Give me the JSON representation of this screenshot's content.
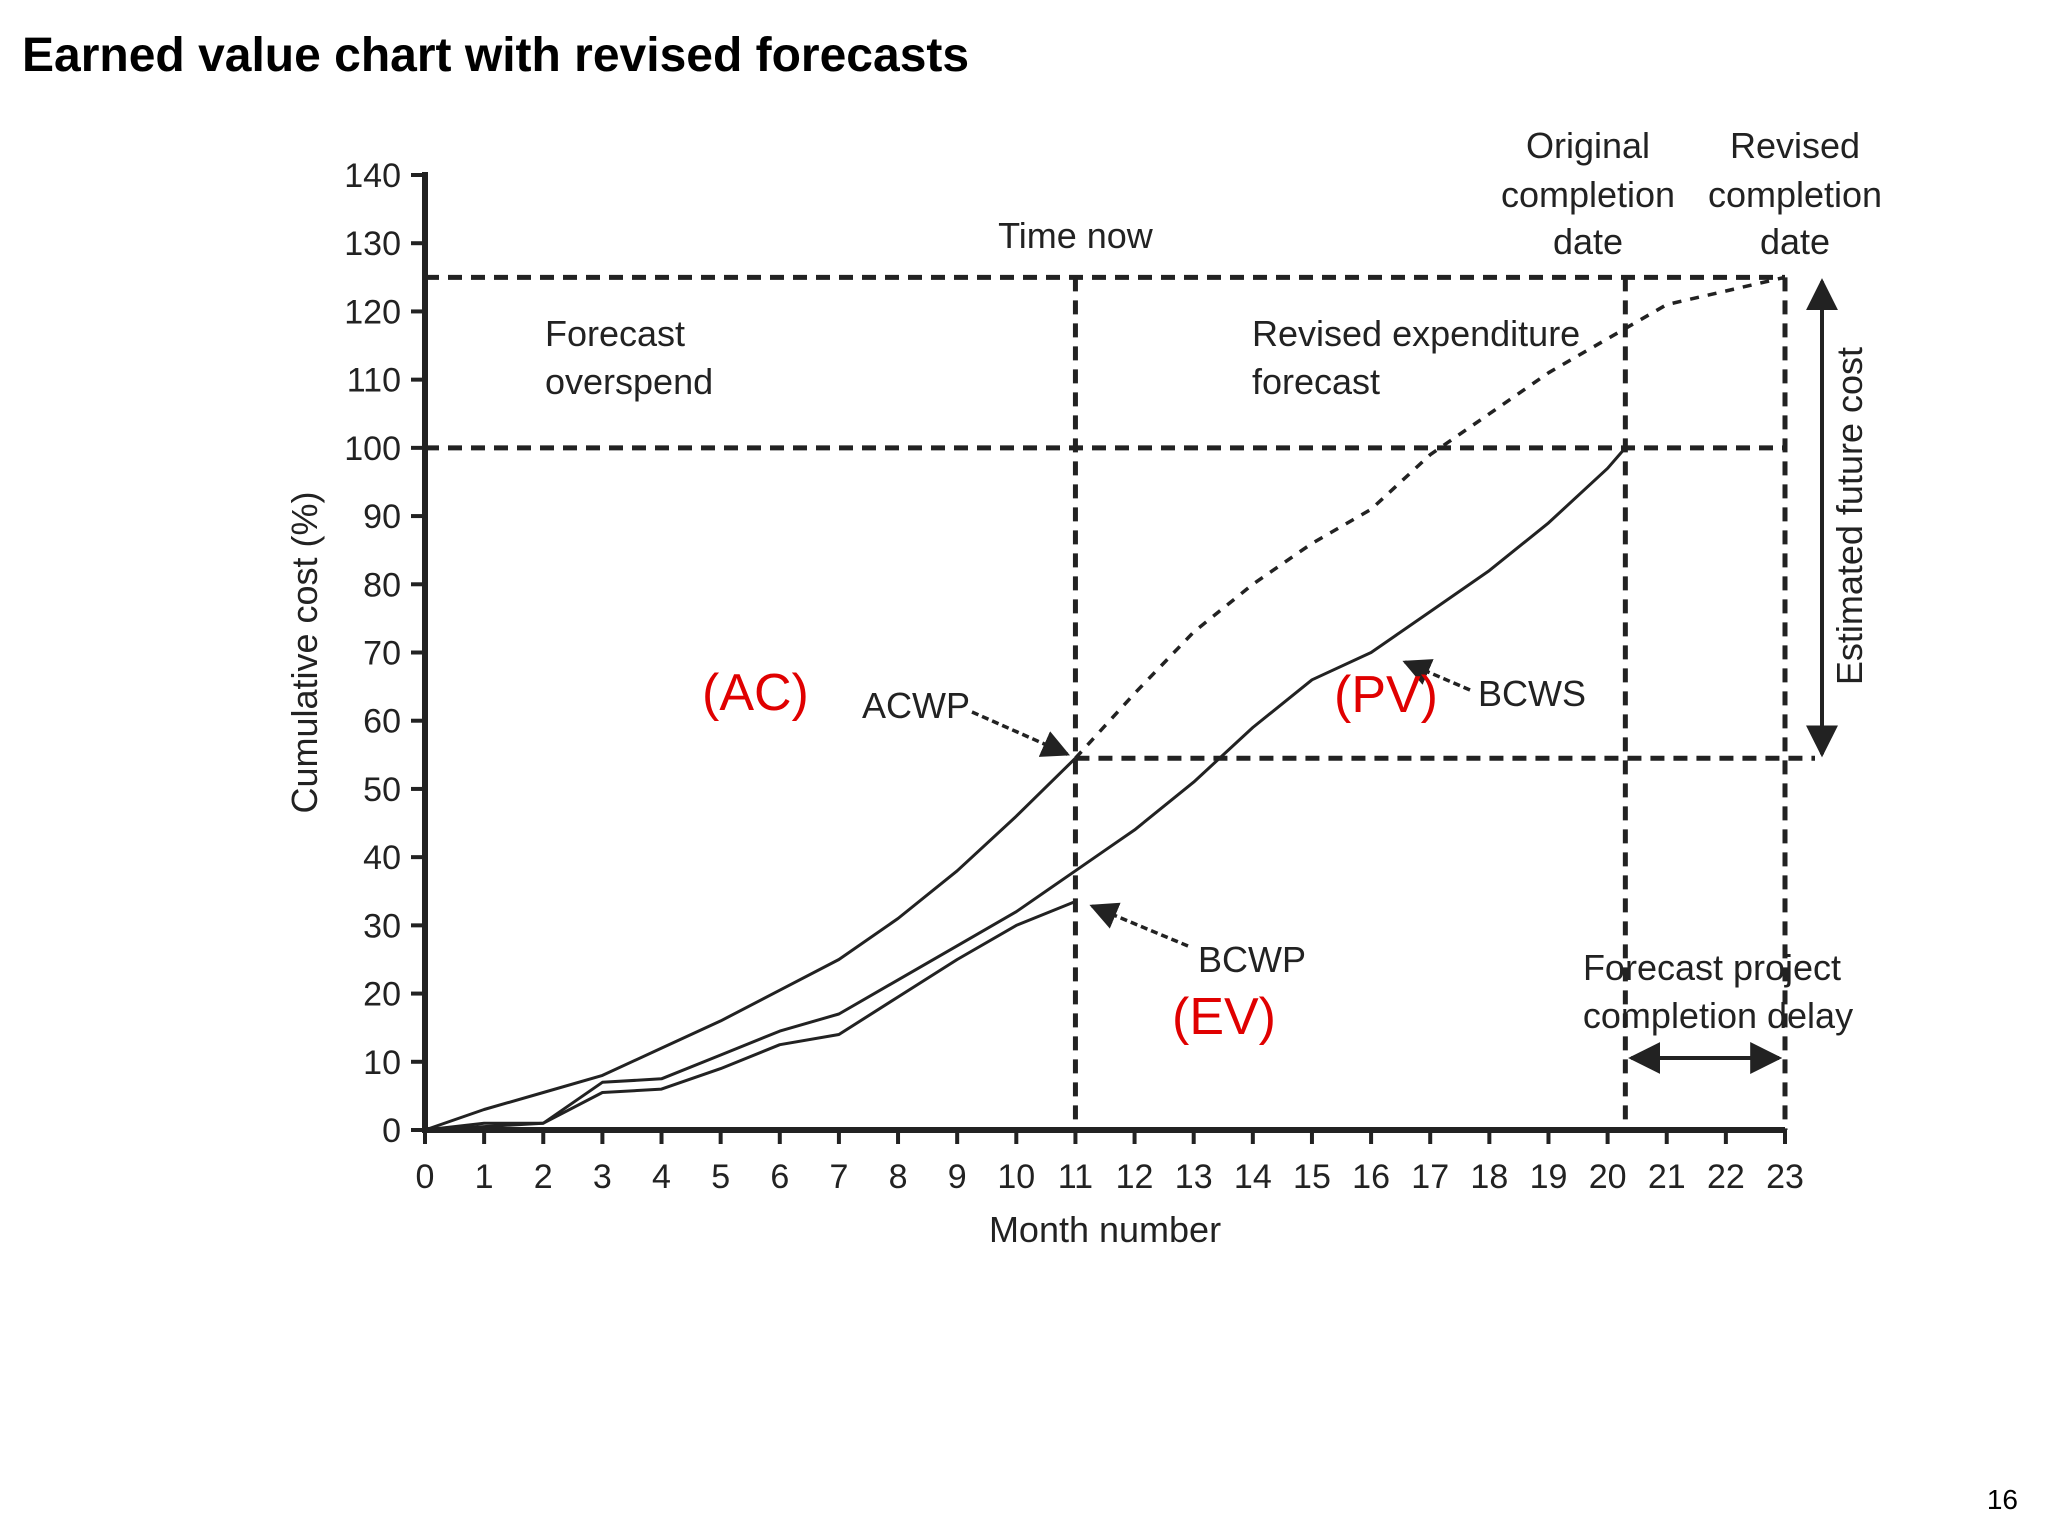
{
  "slide": {
    "title": "Earned value chart with revised forecasts",
    "page_number": "16"
  },
  "chart_data": {
    "type": "line",
    "title": "",
    "xlabel": "Month number",
    "ylabel": "Cumulative cost (%)",
    "xlim": [
      0,
      23
    ],
    "ylim": [
      0,
      140
    ],
    "x_ticks": [
      0,
      1,
      2,
      3,
      4,
      5,
      6,
      7,
      8,
      9,
      10,
      11,
      12,
      13,
      14,
      15,
      16,
      17,
      18,
      19,
      20,
      21,
      22,
      23
    ],
    "y_ticks": [
      0,
      10,
      20,
      30,
      40,
      50,
      60,
      70,
      80,
      90,
      100,
      110,
      120,
      130,
      140
    ],
    "grid": false,
    "series": [
      {
        "name": "ACWP",
        "color": "#222222",
        "style": "solid",
        "x": [
          0,
          1,
          2,
          3,
          4,
          5,
          6,
          7,
          8,
          9,
          10,
          11
        ],
        "y": [
          0,
          3,
          5.5,
          8,
          12,
          16,
          20.5,
          25,
          31,
          38,
          46,
          54.5
        ]
      },
      {
        "name": "BCWS",
        "color": "#222222",
        "style": "solid",
        "x": [
          0,
          1,
          2,
          3,
          4,
          5,
          6,
          7,
          8,
          9,
          10,
          11,
          11.5,
          12,
          13,
          14,
          15,
          16,
          17,
          18,
          19,
          20,
          20.3
        ],
        "y": [
          0,
          1,
          1,
          7,
          7.5,
          11,
          14.5,
          17,
          22,
          27,
          32,
          38,
          41,
          44,
          51,
          59,
          66,
          70,
          76,
          82,
          89,
          97,
          100
        ]
      },
      {
        "name": "BCWP",
        "color": "#222222",
        "style": "solid",
        "x": [
          0,
          1,
          2,
          3,
          4,
          5,
          6,
          7,
          8,
          9,
          10,
          11
        ],
        "y": [
          0,
          0.5,
          1,
          5.5,
          6,
          9,
          12.5,
          14,
          19.5,
          25,
          30,
          33.5
        ]
      },
      {
        "name": "Revised expenditure forecast",
        "color": "#222222",
        "style": "dashed",
        "x": [
          11,
          12,
          13,
          14,
          15,
          16,
          17,
          18,
          19,
          20,
          21,
          22,
          23
        ],
        "y": [
          54.5,
          64,
          73,
          80,
          86,
          91,
          99,
          105,
          111,
          116,
          121,
          123,
          125
        ]
      }
    ],
    "reference_lines": {
      "time_now_month": 11,
      "original_completion_month": 20.3,
      "revised_completion_month": 23,
      "revised_total_pct": 125,
      "budget_total_pct": 100,
      "actual_to_date_pct": 54.5
    },
    "annotations": {
      "time_now": "Time now",
      "original_completion": [
        "Original",
        "completion",
        "date"
      ],
      "revised_completion": [
        "Revised",
        "completion",
        "date"
      ],
      "forecast_overspend": [
        "Forecast",
        "overspend"
      ],
      "revised_expenditure": [
        "Revised expenditure",
        "forecast"
      ],
      "estimated_future_cost": "Estimated future cost",
      "forecast_delay": [
        "Forecast project",
        "completion delay"
      ],
      "acwp": "ACWP",
      "bcws": "BCWS",
      "bcwp": "BCWP",
      "ac": "(AC)",
      "pv": "(PV)",
      "ev": "(EV)"
    },
    "colors": {
      "ink": "#222222",
      "highlight": "#e00000"
    }
  }
}
